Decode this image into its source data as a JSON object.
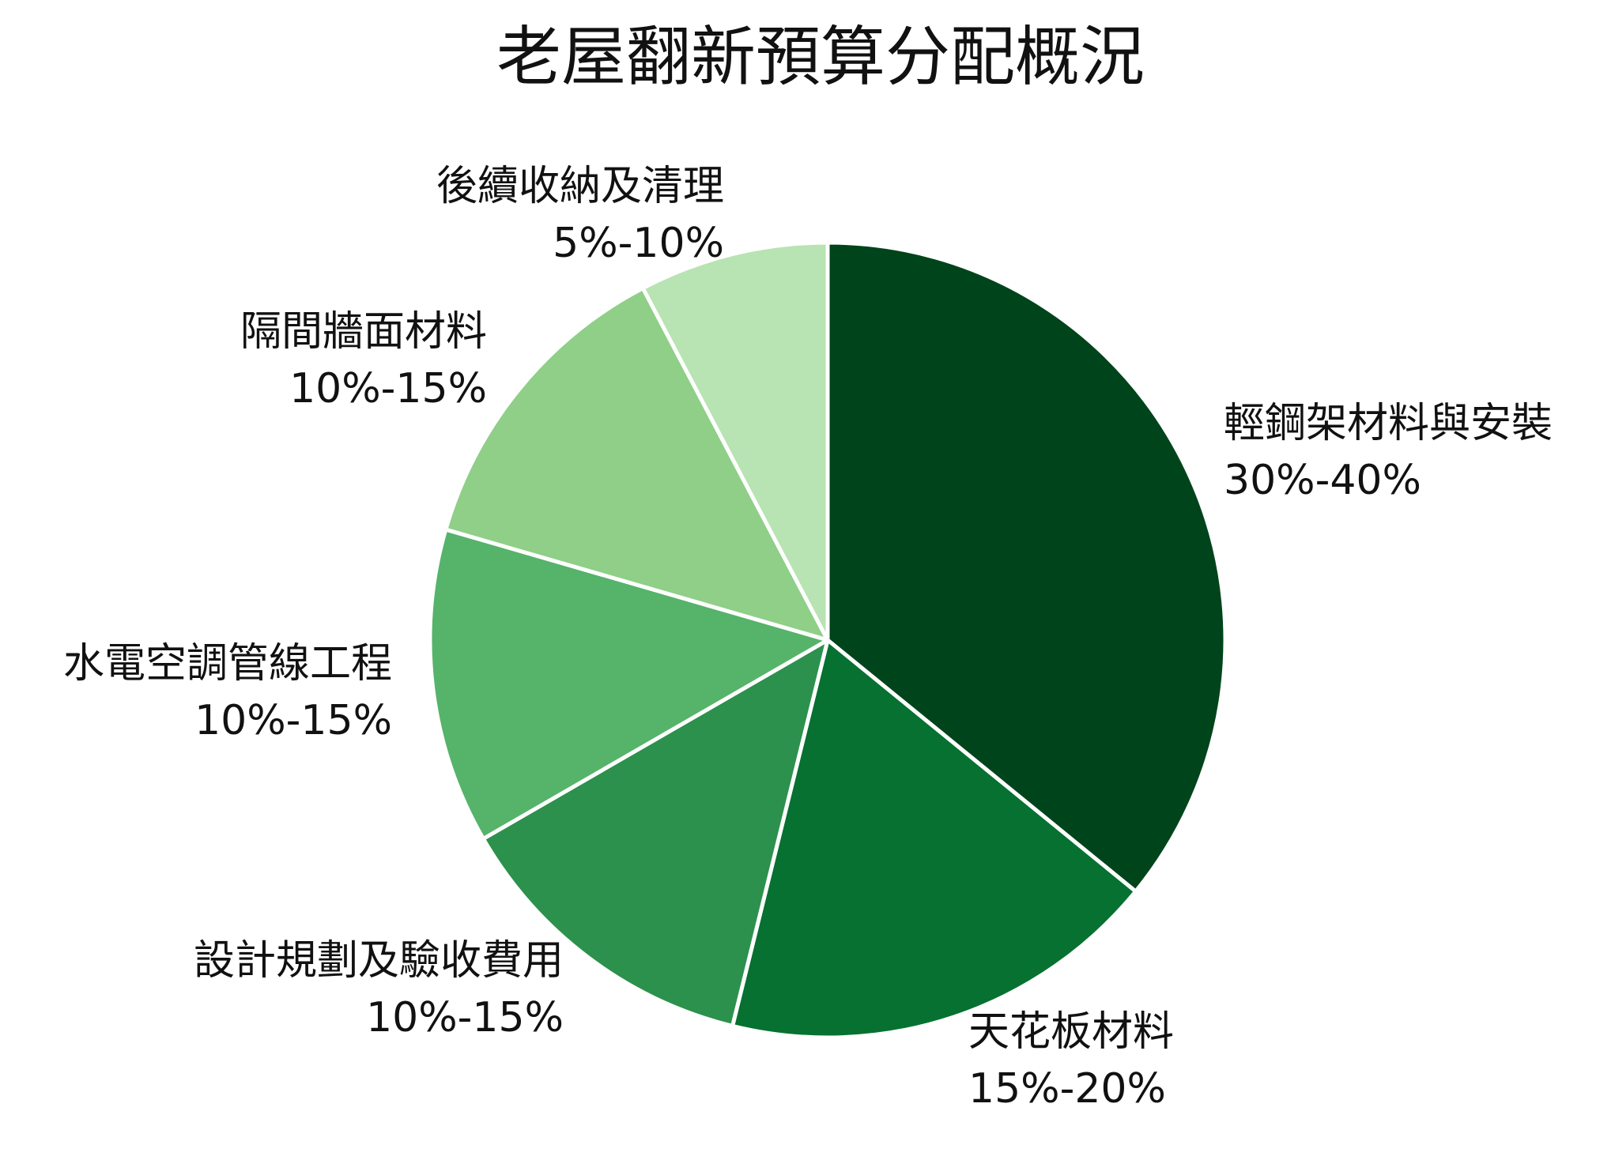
{
  "chart_data": {
    "type": "pie",
    "title": "老屋翻新預算分配概況",
    "start_angle_deg": 0,
    "direction": "clockwise",
    "slices": [
      {
        "label": "輕鋼架材料與安裝",
        "range": "30%-40%",
        "value": 35,
        "color": "#00441b"
      },
      {
        "label": "天花板材料",
        "range": "15%-20%",
        "value": 17.5,
        "color": "#067130"
      },
      {
        "label": "設計規劃及驗收費用",
        "range": "10%-15%",
        "value": 12.5,
        "color": "#2c914c"
      },
      {
        "label": "水電空調管線工程",
        "range": "10%-15%",
        "value": 12.5,
        "color": "#56b36a"
      },
      {
        "label": "隔間牆面材料",
        "range": "10%-15%",
        "value": 12.5,
        "color": "#8fcf88"
      },
      {
        "label": "後續收納及清理",
        "range": "5%-10%",
        "value": 7.5,
        "color": "#b8e3b2"
      }
    ]
  }
}
